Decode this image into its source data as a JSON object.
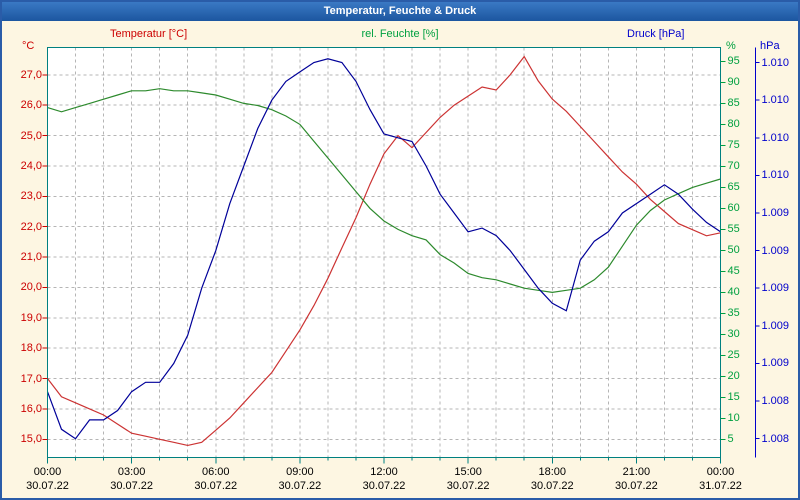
{
  "window": {
    "title": "Temperatur, Feuchte & Druck"
  },
  "legend": {
    "temperature": "Temperatur [°C]",
    "humidity": "rel. Feuchte [%]",
    "pressure": "Druck [hPa]"
  },
  "axes": {
    "temperature": {
      "unit": "°C",
      "color": "#cc0000",
      "tick_values": [
        27,
        26,
        25,
        24,
        23,
        22,
        21,
        20,
        19,
        18,
        17,
        16,
        15
      ],
      "tick_labels": [
        "27,0",
        "26,0",
        "25,0",
        "24,0",
        "23,0",
        "22,0",
        "21,0",
        "20,0",
        "19,0",
        "18,0",
        "17,0",
        "16,0",
        "15,0"
      ]
    },
    "humidity": {
      "unit": "%",
      "color": "#00a040",
      "tick_values": [
        95,
        90,
        85,
        80,
        75,
        70,
        65,
        60,
        55,
        50,
        45,
        40,
        35,
        30,
        25,
        20,
        15,
        10,
        5
      ],
      "tick_labels": [
        "95",
        "90",
        "85",
        "80",
        "75",
        "70",
        "65",
        "60",
        "55",
        "50",
        "45",
        "40",
        "35",
        "30",
        "25",
        "20",
        "15",
        "10",
        "5"
      ]
    },
    "pressure": {
      "unit": "hPa",
      "color": "#0000cc",
      "tick_values": [
        1010.2,
        1010.0,
        1009.8,
        1009.6,
        1009.4,
        1009.2,
        1009.0,
        1008.8,
        1008.6,
        1008.4,
        1008.2
      ],
      "tick_labels": [
        "1.010",
        "1.010",
        "1.010",
        "1.010",
        "1.009",
        "1.009",
        "1.009",
        "1.009",
        "1.009",
        "1.008",
        "1.008"
      ]
    },
    "time": {
      "color": "#000000",
      "tick_hours": [
        0,
        3,
        6,
        9,
        12,
        15,
        18,
        21,
        24
      ],
      "time_labels": [
        "00:00",
        "03:00",
        "06:00",
        "09:00",
        "12:00",
        "15:00",
        "18:00",
        "21:00",
        "00:00"
      ],
      "date_labels": [
        "30.07.22",
        "30.07.22",
        "30.07.22",
        "30.07.22",
        "30.07.22",
        "30.07.22",
        "30.07.22",
        "30.07.22",
        "31.07.22"
      ]
    }
  },
  "chart_data": {
    "type": "line",
    "title": "Temperatur, Feuchte & Druck",
    "x_unit": "hours",
    "x_range_hours": [
      0,
      24
    ],
    "x_step_hours": 0.5,
    "grid": "dashed",
    "grid_color": "#b5b5b5",
    "frame_color": "#008080",
    "legend_position": "top",
    "axis_ranges": {
      "temperature": [
        27.9,
        14.4
      ],
      "humidity": [
        98.3,
        0.7
      ],
      "pressure": [
        1010.28,
        1008.1
      ]
    },
    "series": [
      {
        "name": "Temperatur [°C]",
        "axis": "temperature",
        "color": "#cc3333",
        "values": [
          17.0,
          16.4,
          16.2,
          16.0,
          15.8,
          15.5,
          15.2,
          15.1,
          15.0,
          14.9,
          14.8,
          14.9,
          15.3,
          15.7,
          16.2,
          16.7,
          17.2,
          17.9,
          18.6,
          19.4,
          20.3,
          21.3,
          22.3,
          23.4,
          24.4,
          25.0,
          24.6,
          25.1,
          25.6,
          26.0,
          26.3,
          26.6,
          26.5,
          27.0,
          27.6,
          26.8,
          26.2,
          25.8,
          25.3,
          24.8,
          24.3,
          23.8,
          23.4,
          22.9,
          22.5,
          22.1,
          21.9,
          21.7,
          21.8
        ]
      },
      {
        "name": "rel. Feuchte [%]",
        "axis": "humidity",
        "color": "#2d8a2d",
        "values": [
          84,
          83,
          84,
          85,
          86,
          87,
          88,
          88,
          88.5,
          88,
          88,
          87.5,
          87,
          86,
          85,
          84.5,
          83.5,
          82,
          80,
          76,
          72,
          68,
          64,
          60,
          57,
          55,
          53.5,
          52.5,
          49,
          47,
          44.5,
          43.5,
          43,
          42,
          41,
          40.5,
          40,
          40.5,
          41,
          43,
          46,
          51,
          56,
          59.5,
          62,
          63.5,
          65,
          66,
          67
        ]
      },
      {
        "name": "Druck [hPa]",
        "axis": "pressure",
        "color": "#000099",
        "values": [
          1008.45,
          1008.25,
          1008.2,
          1008.3,
          1008.3,
          1008.35,
          1008.45,
          1008.5,
          1008.5,
          1008.6,
          1008.75,
          1009.0,
          1009.2,
          1009.45,
          1009.65,
          1009.85,
          1010.0,
          1010.1,
          1010.15,
          1010.2,
          1010.22,
          1010.2,
          1010.1,
          1009.95,
          1009.82,
          1009.8,
          1009.78,
          1009.65,
          1009.5,
          1009.4,
          1009.3,
          1009.32,
          1009.28,
          1009.2,
          1009.1,
          1009.0,
          1008.92,
          1008.88,
          1009.15,
          1009.25,
          1009.3,
          1009.4,
          1009.45,
          1009.5,
          1009.55,
          1009.5,
          1009.42,
          1009.35,
          1009.3
        ]
      }
    ]
  }
}
